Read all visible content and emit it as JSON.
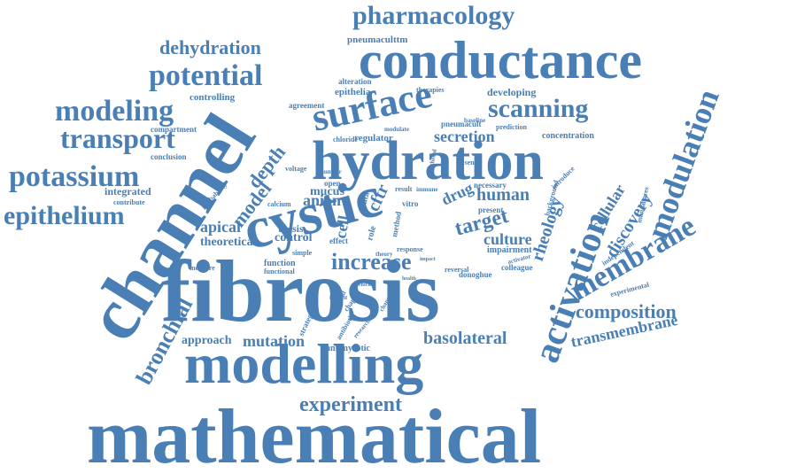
{
  "word_color": "#4a7fb5",
  "background_color": "#ffffff",
  "words": [
    "mathematical",
    "fibrosis",
    "channel",
    "modelling",
    "conductance",
    "hydration",
    "cystic",
    "surface",
    "activation",
    "modulation",
    "membrane",
    "potassium",
    "epithelium",
    "transport",
    "modeling",
    "potential",
    "dehydration",
    "pharmacology",
    "scanning",
    "experiment",
    "increase",
    "bronchial",
    "composition",
    "transmembrane",
    "basolateral",
    "mutation",
    "approach",
    "rheology",
    "discovery",
    "cellular",
    "human",
    "target",
    "culture",
    "secretion",
    "depth",
    "model",
    "anion",
    "cftr",
    "apical",
    "theoretical",
    "control",
    "thesis",
    "mucus",
    "drug",
    "integrated",
    "conclusion",
    "compartment",
    "controlling",
    "agreement",
    "epithelia",
    "pneumaculttm",
    "alteration",
    "therapies",
    "developing",
    "regulator",
    "chloride",
    "concentration",
    "prediction",
    "baseline",
    "modulate",
    "pneumacult",
    "calcium",
    "probability",
    "voltage",
    "number",
    "necessary",
    "present",
    "impairment",
    "colleague",
    "donoghue",
    "reversal",
    "response",
    "function",
    "functional",
    "simple",
    "effect",
    "strategies",
    "antimycotic",
    "antibiotic",
    "research",
    "maximal",
    "chapter",
    "insight",
    "vitro",
    "method",
    "background",
    "introduce",
    "independent",
    "manzanares",
    "experimental",
    "activator",
    "measure",
    "contribute",
    "absence",
    "epithelial",
    "immune",
    "result",
    "open",
    "cell",
    "role",
    "data",
    "theory",
    "impact",
    "health",
    "vehicle",
    "change"
  ]
}
